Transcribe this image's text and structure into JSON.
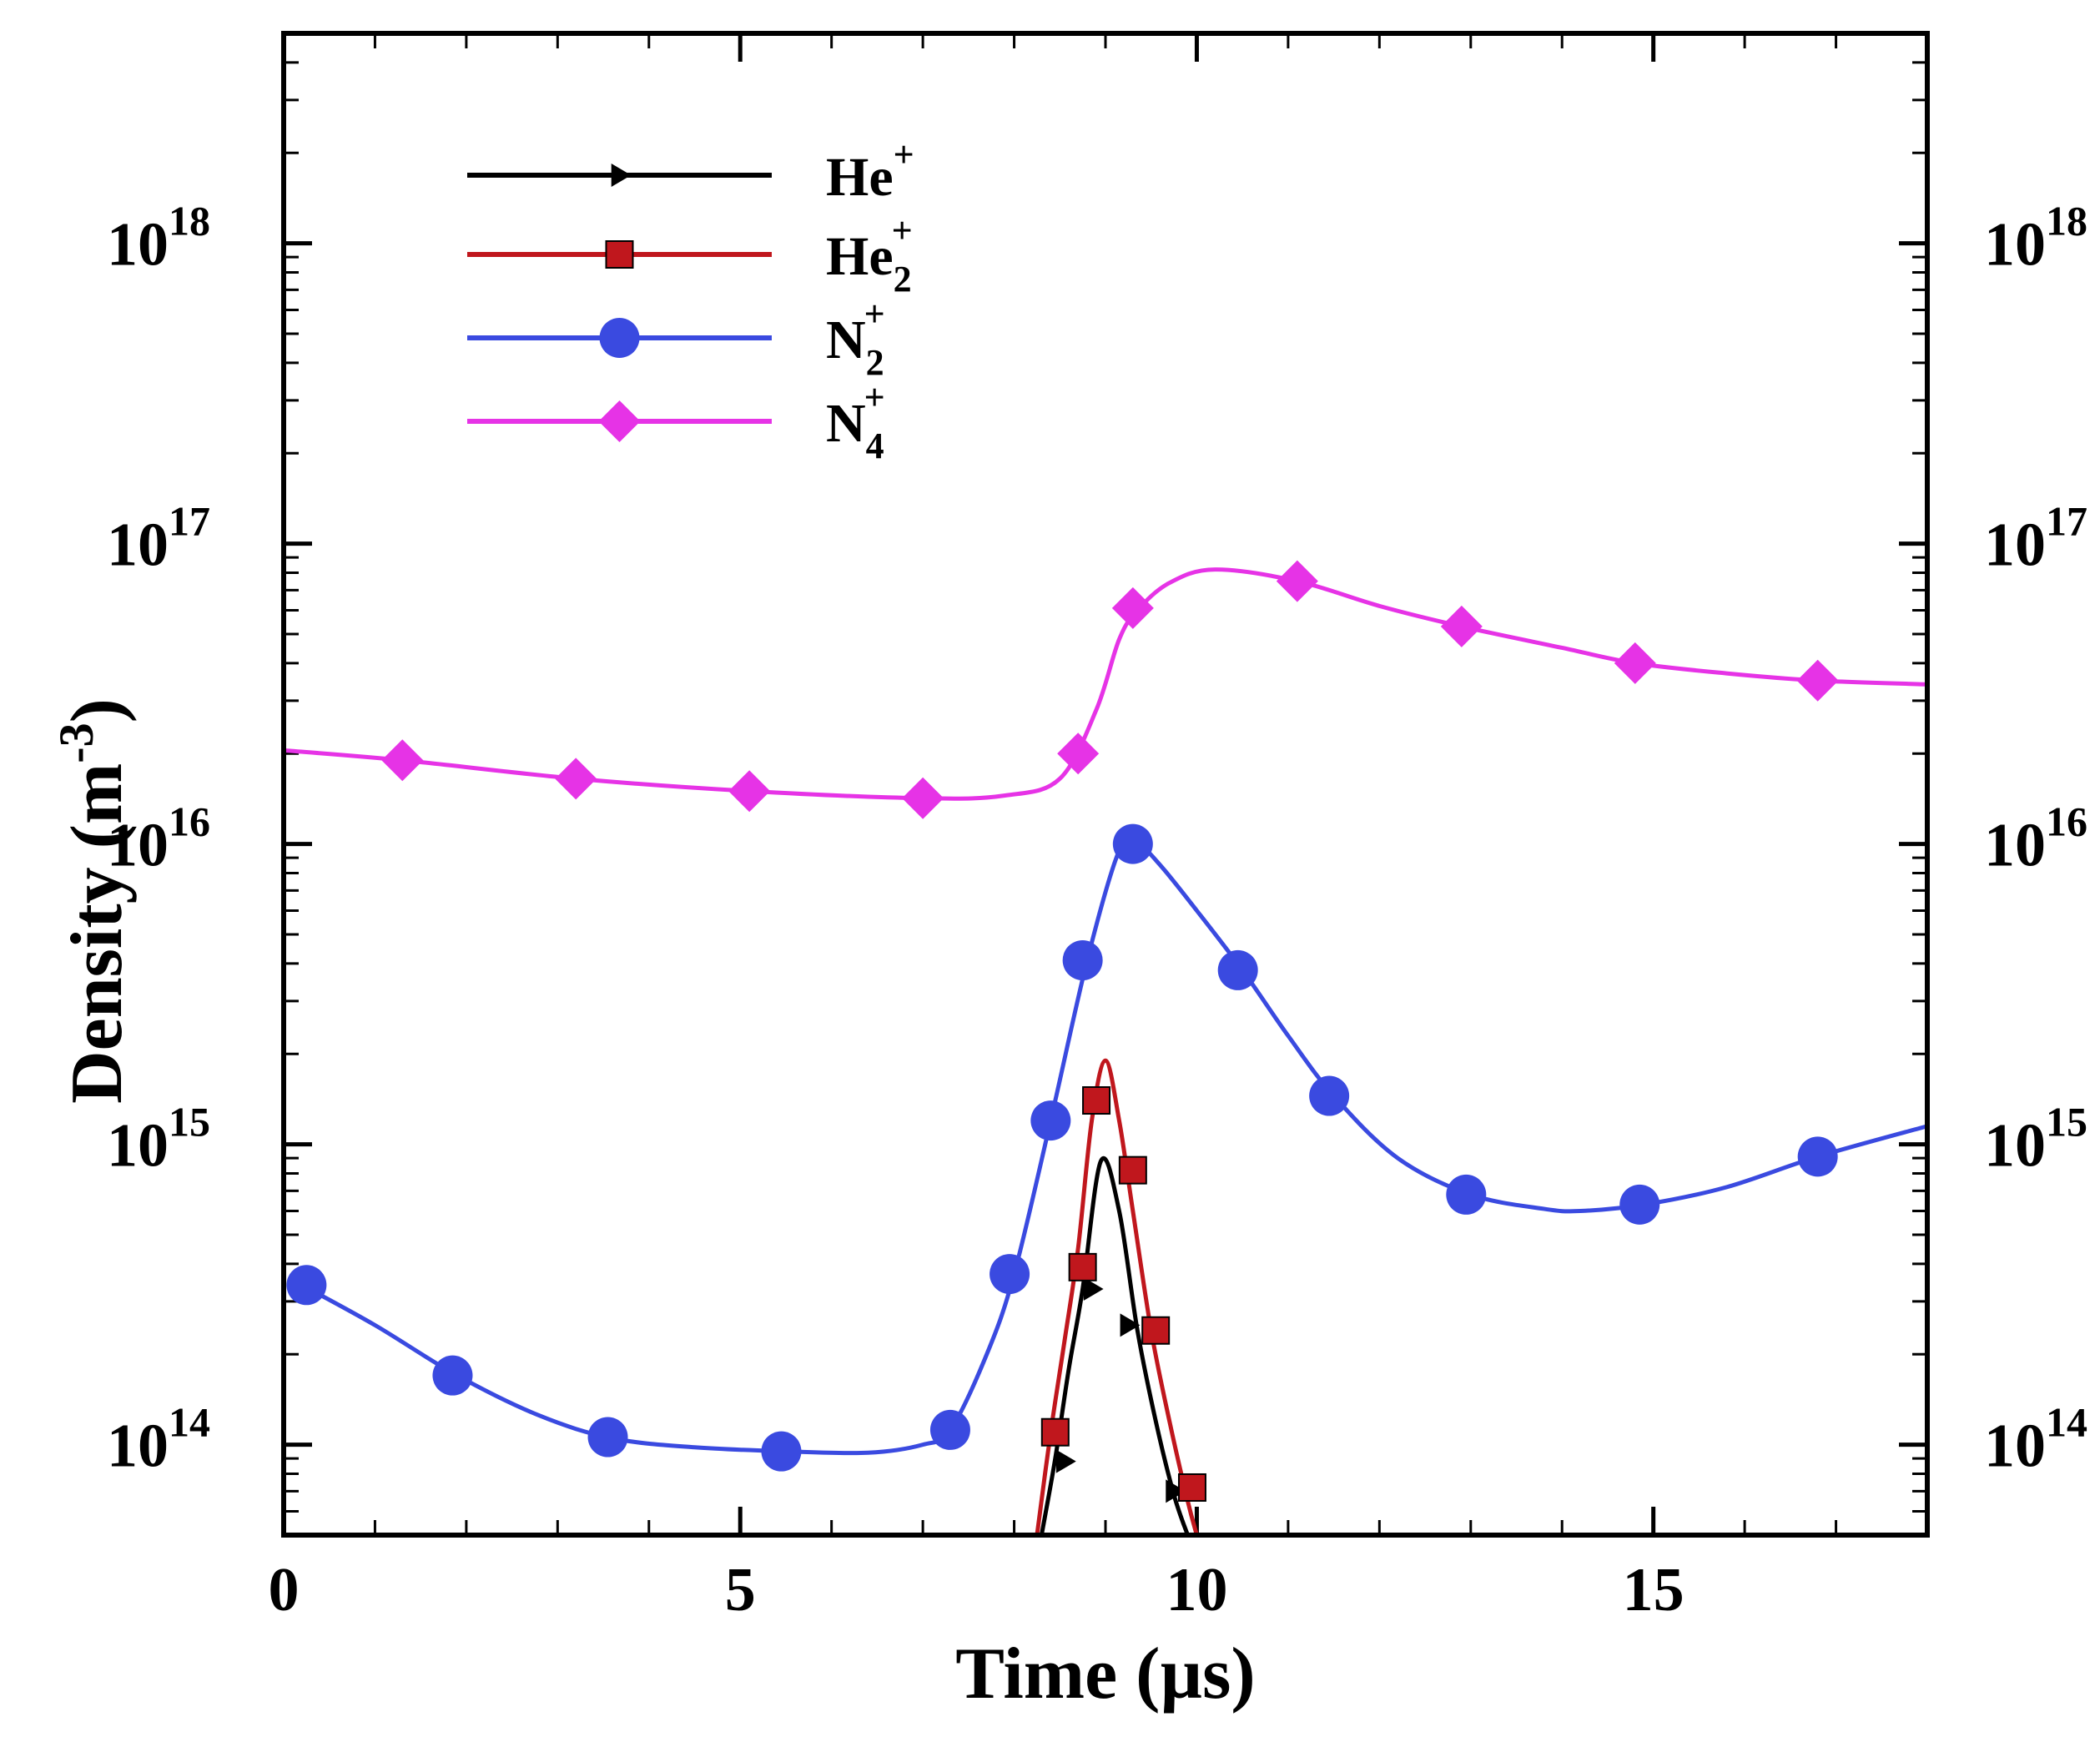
{
  "chart_data": {
    "type": "line",
    "xlabel": "Time (µs)",
    "ylabel_main": "Density (m",
    "ylabel_exponent": "-3",
    "ylabel_close": ")",
    "xlim": [
      0,
      18
    ],
    "ylim": [
      50000000000000.0,
      5e+18
    ],
    "y_scale": "log",
    "x_ticks": [
      {
        "value": 0,
        "label": "0"
      },
      {
        "value": 5,
        "label": "5"
      },
      {
        "value": 10,
        "label": "10"
      },
      {
        "value": 15,
        "label": "15"
      }
    ],
    "y_ticks": [
      {
        "value": 100000000000000.0,
        "base": "10",
        "exp": "14"
      },
      {
        "value": 1000000000000000.0,
        "base": "10",
        "exp": "15"
      },
      {
        "value": 1e+16,
        "base": "10",
        "exp": "16"
      },
      {
        "value": 1e+17,
        "base": "10",
        "exp": "17"
      },
      {
        "value": 1e+18,
        "base": "10",
        "exp": "18"
      }
    ],
    "legend_position": "top-left",
    "series": [
      {
        "name": "He+",
        "label_base": "He",
        "label_sub": "",
        "label_sup": "+",
        "color": "#000000",
        "marker": "triangle-right",
        "x": [
          8.3,
          8.45,
          8.6,
          8.75,
          8.95,
          9.15,
          9.35,
          9.55,
          9.75,
          9.9
        ],
        "y": [
          50000000000000.0,
          90000000000000.0,
          180000000000000.0,
          330000000000000.0,
          880000000000000.0,
          600000000000000.0,
          240000000000000.0,
          120000000000000.0,
          68000000000000.0,
          50000000000000.0
        ],
        "markers_x": [
          8.55,
          8.85,
          9.25,
          9.75
        ],
        "markers_y": [
          88000000000000.0,
          330000000000000.0,
          250000000000000.0,
          70000000000000.0
        ]
      },
      {
        "name": "He2+",
        "label_base": "He",
        "label_sub": "2",
        "label_sup": "+",
        "color": "#c0171d",
        "marker": "square",
        "x": [
          8.25,
          8.4,
          8.55,
          8.7,
          8.85,
          9.0,
          9.15,
          9.3,
          9.5,
          9.7,
          9.9,
          10.0
        ],
        "y": [
          50000000000000.0,
          110000000000000.0,
          220000000000000.0,
          450000000000000.0,
          1200000000000000.0,
          1900000000000000.0,
          1200000000000000.0,
          600000000000000.0,
          240000000000000.0,
          120000000000000.0,
          65000000000000.0,
          50000000000000.0
        ],
        "markers_x": [
          8.45,
          8.75,
          8.9,
          9.3,
          9.55,
          9.95
        ],
        "markers_y": [
          110000000000000.0,
          390000000000000.0,
          1400000000000000.0,
          820000000000000.0,
          240000000000000.0,
          72000000000000.0
        ]
      },
      {
        "name": "N2+",
        "label_base": "N",
        "label_sub": "2",
        "label_sup": "+",
        "color": "#3a4ae0",
        "marker": "circle",
        "x": [
          0.2,
          1.0,
          1.9,
          2.8,
          3.6,
          4.5,
          5.5,
          6.4,
          7.0,
          7.3,
          7.7,
          8.0,
          8.4,
          8.8,
          9.15,
          9.35,
          9.6,
          10.0,
          10.5,
          11.0,
          11.5,
          12.2,
          13.0,
          13.8,
          14.2,
          14.9,
          15.8,
          16.8,
          18.0
        ],
        "y": [
          340000000000000.0,
          250000000000000.0,
          170000000000000.0,
          125000000000000.0,
          105000000000000.0,
          98000000000000.0,
          95000000000000.0,
          94000000000000.0,
          100000000000000.0,
          112000000000000.0,
          200000000000000.0,
          370000000000000.0,
          1200000000000000.0,
          4100000000000000.0,
          9500000000000000.0,
          1e+16,
          8500000000000000.0,
          6000000000000000.0,
          3800000000000000.0,
          2300000000000000.0,
          1450000000000000.0,
          900000000000000.0,
          680000000000000.0,
          610000000000000.0,
          600000000000000.0,
          630000000000000.0,
          720000000000000.0,
          910000000000000.0,
          1150000000000000.0
        ],
        "markers_x": [
          0.25,
          1.85,
          3.55,
          5.45,
          7.3,
          7.95,
          8.4,
          8.75,
          9.3,
          10.45,
          11.45,
          12.95,
          14.85,
          16.8
        ],
        "markers_y": [
          340000000000000.0,
          170000000000000.0,
          106000000000000.0,
          95000000000000.0,
          112000000000000.0,
          370000000000000.0,
          1200000000000000.0,
          4100000000000000.0,
          1e+16,
          3800000000000000.0,
          1450000000000000.0,
          680000000000000.0,
          630000000000000.0,
          910000000000000.0
        ]
      },
      {
        "name": "N4+",
        "label_base": "N",
        "label_sub": "4",
        "label_sup": "+",
        "color": "#e633e6",
        "marker": "diamond",
        "x": [
          0.0,
          1.3,
          3.2,
          5.1,
          7.0,
          7.9,
          8.5,
          8.9,
          9.15,
          9.35,
          9.7,
          10.2,
          11.1,
          12.0,
          12.9,
          14.0,
          14.8,
          15.8,
          16.8,
          18.0
        ],
        "y": [
          2.05e+16,
          1.9e+16,
          1.65e+16,
          1.5e+16,
          1.42e+16,
          1.45e+16,
          1.65e+16,
          2.8e+16,
          4.8e+16,
          6e+16,
          7.4e+16,
          8.2e+16,
          7.5e+16,
          6.2e+16,
          5.3e+16,
          4.5e+16,
          4e+16,
          3.7e+16,
          3.5e+16,
          3.4e+16
        ],
        "markers_x": [
          1.3,
          3.2,
          5.1,
          7.0,
          8.7,
          9.3,
          11.1,
          12.9,
          14.8,
          16.8
        ],
        "markers_y": [
          1.9e+16,
          1.65e+16,
          1.5e+16,
          1.42e+16,
          2e+16,
          6.1e+16,
          7.5e+16,
          5.3e+16,
          4e+16,
          3.5e+16
        ]
      }
    ]
  }
}
